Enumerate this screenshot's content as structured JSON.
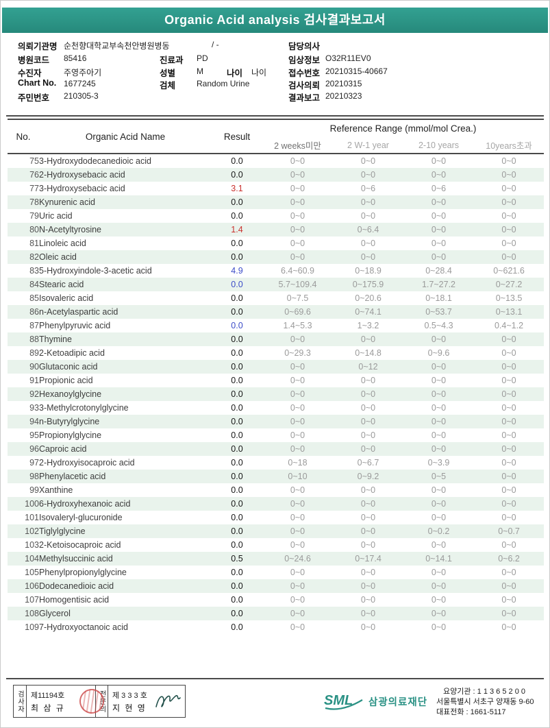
{
  "title": "Organic Acid analysis 검사결과보고서",
  "colors": {
    "header_teal": "#2a9184",
    "result_high": "#c9302c",
    "result_low": "#3b4bc8",
    "row_stripe": "#e9f3ec"
  },
  "info": {
    "org_label": "의뢰기관명",
    "org_value": "순천향대학교부속천안병원병동",
    "org_extra": "/ -",
    "hospcode_label": "병원코드",
    "hospcode_value": "85416",
    "dept_label": "진료과",
    "dept_value": "PD",
    "patient_label": "수진자",
    "patient_value": "주영주아기",
    "sex_label": "성별",
    "sex_value": "M",
    "age_label": "나이",
    "age_value": "나이",
    "chart_label": "Chart No.",
    "chart_value": "1677245",
    "specimen_label": "검체",
    "specimen_value": "Random Urine",
    "jumin_label": "주민번호",
    "jumin_value": "210305-3",
    "doctor_label": "담당의사",
    "doctor_value": "",
    "clinical_label": "임상정보",
    "clinical_value": "O32R11EV0",
    "receipt_label": "접수번호",
    "receipt_value": "20210315-40667",
    "request_label": "검사의뢰",
    "request_value": "20210315",
    "report_label": "결과보고",
    "report_value": "20210323"
  },
  "table": {
    "col_no": "No.",
    "col_name": "Organic Acid Name",
    "col_result": "Result",
    "col_ref": "Reference Range (mmol/mol Crea.)",
    "ref_cols": [
      "2 weeks미만",
      "2 W-1 year",
      "2-10 years",
      "10years초과"
    ],
    "rows": [
      {
        "no": 75,
        "name": "3-Hydroxydodecanedioic acid",
        "result": "0.0",
        "flag": "normal",
        "refs": [
          "0~0",
          "0~0",
          "0~0",
          "0~0"
        ]
      },
      {
        "no": 76,
        "name": "2-Hydroxysebacic acid",
        "result": "0.0",
        "flag": "normal",
        "refs": [
          "0~0",
          "0~0",
          "0~0",
          "0~0"
        ]
      },
      {
        "no": 77,
        "name": "3-Hydroxysebacic acid",
        "result": "3.1",
        "flag": "high",
        "refs": [
          "0~0",
          "0~6",
          "0~6",
          "0~0"
        ]
      },
      {
        "no": 78,
        "name": "Kynurenic acid",
        "result": "0.0",
        "flag": "normal",
        "refs": [
          "0~0",
          "0~0",
          "0~0",
          "0~0"
        ]
      },
      {
        "no": 79,
        "name": "Uric acid",
        "result": "0.0",
        "flag": "normal",
        "refs": [
          "0~0",
          "0~0",
          "0~0",
          "0~0"
        ]
      },
      {
        "no": 80,
        "name": "N-Acetyltyrosine",
        "result": "1.4",
        "flag": "high",
        "refs": [
          "0~0",
          "0~6.4",
          "0~0",
          "0~0"
        ]
      },
      {
        "no": 81,
        "name": "Linoleic acid",
        "result": "0.0",
        "flag": "normal",
        "refs": [
          "0~0",
          "0~0",
          "0~0",
          "0~0"
        ]
      },
      {
        "no": 82,
        "name": "Oleic acid",
        "result": "0.0",
        "flag": "normal",
        "refs": [
          "0~0",
          "0~0",
          "0~0",
          "0~0"
        ]
      },
      {
        "no": 83,
        "name": "5-Hydroxyindole-3-acetic acid",
        "result": "4.9",
        "flag": "low",
        "refs": [
          "6.4~60.9",
          "0~18.9",
          "0~28.4",
          "0~621.6"
        ]
      },
      {
        "no": 84,
        "name": "Stearic acid",
        "result": "0.0",
        "flag": "low",
        "refs": [
          "5.7~109.4",
          "0~175.9",
          "1.7~27.2",
          "0~27.2"
        ]
      },
      {
        "no": 85,
        "name": "Isovaleric acid",
        "result": "0.0",
        "flag": "normal",
        "refs": [
          "0~7.5",
          "0~20.6",
          "0~18.1",
          "0~13.5"
        ]
      },
      {
        "no": 86,
        "name": "n-Acetylaspartic acid",
        "result": "0.0",
        "flag": "normal",
        "refs": [
          "0~69.6",
          "0~74.1",
          "0~53.7",
          "0~13.1"
        ]
      },
      {
        "no": 87,
        "name": "Phenylpyruvic acid",
        "result": "0.0",
        "flag": "low",
        "refs": [
          "1.4~5.3",
          "1~3.2",
          "0.5~4.3",
          "0.4~1.2"
        ]
      },
      {
        "no": 88,
        "name": "Thymine",
        "result": "0.0",
        "flag": "normal",
        "refs": [
          "0~0",
          "0~0",
          "0~0",
          "0~0"
        ]
      },
      {
        "no": 89,
        "name": "2-Ketoadipic acid",
        "result": "0.0",
        "flag": "normal",
        "refs": [
          "0~29.3",
          "0~14.8",
          "0~9.6",
          "0~0"
        ]
      },
      {
        "no": 90,
        "name": "Glutaconic acid",
        "result": "0.0",
        "flag": "normal",
        "refs": [
          "0~0",
          "0~12",
          "0~0",
          "0~0"
        ]
      },
      {
        "no": 91,
        "name": "Propionic acid",
        "result": "0.0",
        "flag": "normal",
        "refs": [
          "0~0",
          "0~0",
          "0~0",
          "0~0"
        ]
      },
      {
        "no": 92,
        "name": "Hexanoylglycine",
        "result": "0.0",
        "flag": "normal",
        "refs": [
          "0~0",
          "0~0",
          "0~0",
          "0~0"
        ]
      },
      {
        "no": 93,
        "name": "3-Methylcrotonylglycine",
        "result": "0.0",
        "flag": "normal",
        "refs": [
          "0~0",
          "0~0",
          "0~0",
          "0~0"
        ]
      },
      {
        "no": 94,
        "name": "n-Butyrylglycine",
        "result": "0.0",
        "flag": "normal",
        "refs": [
          "0~0",
          "0~0",
          "0~0",
          "0~0"
        ]
      },
      {
        "no": 95,
        "name": "Propionylglycine",
        "result": "0.0",
        "flag": "normal",
        "refs": [
          "0~0",
          "0~0",
          "0~0",
          "0~0"
        ]
      },
      {
        "no": 96,
        "name": "Caproic acid",
        "result": "0.0",
        "flag": "normal",
        "refs": [
          "0~0",
          "0~0",
          "0~0",
          "0~0"
        ]
      },
      {
        "no": 97,
        "name": "2-Hydroxyisocaproic acid",
        "result": "0.0",
        "flag": "normal",
        "refs": [
          "0~18",
          "0~6.7",
          "0~3.9",
          "0~0"
        ]
      },
      {
        "no": 98,
        "name": "Phenylacetic acid",
        "result": "0.0",
        "flag": "normal",
        "refs": [
          "0~10",
          "0~9.2",
          "0~5",
          "0~0"
        ]
      },
      {
        "no": 99,
        "name": "Xanthine",
        "result": "0.0",
        "flag": "normal",
        "refs": [
          "0~0",
          "0~0",
          "0~0",
          "0~0"
        ]
      },
      {
        "no": 100,
        "name": "6-Hydroxyhexanoic acid",
        "result": "0.0",
        "flag": "normal",
        "refs": [
          "0~0",
          "0~0",
          "0~0",
          "0~0"
        ]
      },
      {
        "no": 101,
        "name": "Isovaleryl-glucuronide",
        "result": "0.0",
        "flag": "normal",
        "refs": [
          "0~0",
          "0~0",
          "0~0",
          "0~0"
        ]
      },
      {
        "no": 102,
        "name": "Tiglylglycine",
        "result": "0.0",
        "flag": "normal",
        "refs": [
          "0~0",
          "0~0",
          "0~0.2",
          "0~0.7"
        ]
      },
      {
        "no": 103,
        "name": "2-Ketoisocaproic acid",
        "result": "0.0",
        "flag": "normal",
        "refs": [
          "0~0",
          "0~0",
          "0~0",
          "0~0"
        ]
      },
      {
        "no": 104,
        "name": "Methylsuccinic acid",
        "result": "0.5",
        "flag": "normal",
        "refs": [
          "0~24.6",
          "0~17.4",
          "0~14.1",
          "0~6.2"
        ]
      },
      {
        "no": 105,
        "name": "Phenylpropionylglycine",
        "result": "0.0",
        "flag": "normal",
        "refs": [
          "0~0",
          "0~0",
          "0~0",
          "0~0"
        ]
      },
      {
        "no": 106,
        "name": "Dodecanedioic acid",
        "result": "0.0",
        "flag": "normal",
        "refs": [
          "0~0",
          "0~0",
          "0~0",
          "0~0"
        ]
      },
      {
        "no": 107,
        "name": "Homogentisic acid",
        "result": "0.0",
        "flag": "normal",
        "refs": [
          "0~0",
          "0~0",
          "0~0",
          "0~0"
        ]
      },
      {
        "no": 108,
        "name": "Glycerol",
        "result": "0.0",
        "flag": "normal",
        "refs": [
          "0~0",
          "0~0",
          "0~0",
          "0~0"
        ]
      },
      {
        "no": 109,
        "name": "7-Hydroxyoctanoic acid",
        "result": "0.0",
        "flag": "normal",
        "refs": [
          "0~0",
          "0~0",
          "0~0",
          "0~0"
        ]
      }
    ]
  },
  "footer": {
    "examiner_role": "검사자",
    "examiner_cert": "제11194호",
    "examiner_name": "최 삼 규",
    "specialist_role": "전문의",
    "specialist_cert": "제 3 3 3 호",
    "specialist_name": "지 현 영",
    "logo_sml": "SML",
    "logo_org": "삼광의료재단",
    "contact": [
      "요양기관 : 1 1 3 6 5 2 0 0",
      "서울특별시 서초구 양재동 9-60",
      "대표전화 : 1661-5117"
    ]
  }
}
